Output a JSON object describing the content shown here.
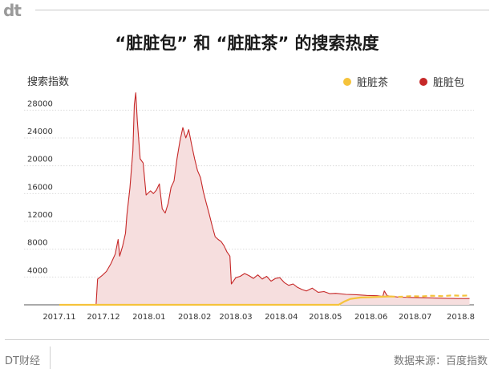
{
  "header": {
    "logo_text": "dt"
  },
  "footer": {
    "brand": "DT财经",
    "source": "数据来源：百度指数"
  },
  "chart_data": {
    "type": "area",
    "title": "“脏脏包” 和 “脏脏茶” 的搜索热度",
    "ylabel": "搜索指数",
    "xlabel": "",
    "ylim": [
      0,
      30000
    ],
    "yticks": [
      4000,
      8000,
      12000,
      16000,
      20000,
      24000,
      28000
    ],
    "x_ticks": [
      "2017.11",
      "2017.12",
      "2018.01",
      "2018.02",
      "2018.03",
      "2018.04",
      "2018.05",
      "2018.06",
      "2018.07",
      "2018.8"
    ],
    "legend": "top-right",
    "grid": true,
    "series": [
      {
        "name": "脏脏茶",
        "color": "#f5c33b",
        "dashed_after": "2018.06.14",
        "points": [
          [
            "2017.11.01",
            0
          ],
          [
            "2018.05.10",
            0
          ],
          [
            "2018.05.14",
            500
          ],
          [
            "2018.05.18",
            850
          ],
          [
            "2018.05.25",
            1050
          ],
          [
            "2018.06.01",
            1100
          ],
          [
            "2018.06.07",
            1150
          ],
          [
            "2018.06.14",
            1200
          ],
          [
            "2018.06.21",
            1150
          ],
          [
            "2018.06.28",
            1250
          ],
          [
            "2018.07.05",
            1200
          ],
          [
            "2018.07.12",
            1300
          ],
          [
            "2018.07.19",
            1250
          ],
          [
            "2018.07.26",
            1350
          ],
          [
            "2018.08.01",
            1300
          ],
          [
            "2018.08.07",
            1350
          ]
        ]
      },
      {
        "name": "脏脏包",
        "color": "#c62828",
        "fill": "#f6dede",
        "points": [
          [
            "2017.11.01",
            0
          ],
          [
            "2017.11.26",
            0
          ],
          [
            "2017.11.27",
            3700
          ],
          [
            "2017.11.30",
            4200
          ],
          [
            "2017.12.03",
            4800
          ],
          [
            "2017.12.06",
            5900
          ],
          [
            "2017.12.09",
            7300
          ],
          [
            "2017.12.11",
            9400
          ],
          [
            "2017.12.12",
            7000
          ],
          [
            "2017.12.14",
            8400
          ],
          [
            "2017.12.16",
            10300
          ],
          [
            "2017.12.17",
            13000
          ],
          [
            "2017.12.19",
            16800
          ],
          [
            "2017.12.21",
            22200
          ],
          [
            "2017.12.22",
            28800
          ],
          [
            "2017.12.23",
            30500
          ],
          [
            "2017.12.24",
            26500
          ],
          [
            "2017.12.26",
            21000
          ],
          [
            "2017.12.28",
            20400
          ],
          [
            "2017.12.30",
            15800
          ],
          [
            "2018.01.02",
            16400
          ],
          [
            "2018.01.04",
            16000
          ],
          [
            "2018.01.06",
            16500
          ],
          [
            "2018.01.08",
            17400
          ],
          [
            "2018.01.10",
            13800
          ],
          [
            "2018.01.12",
            13200
          ],
          [
            "2018.01.14",
            14600
          ],
          [
            "2018.01.16",
            16900
          ],
          [
            "2018.01.18",
            17800
          ],
          [
            "2018.01.20",
            21000
          ],
          [
            "2018.01.22",
            23500
          ],
          [
            "2018.01.24",
            25500
          ],
          [
            "2018.01.26",
            24000
          ],
          [
            "2018.01.28",
            25200
          ],
          [
            "2018.01.30",
            23000
          ],
          [
            "2018.02.01",
            21000
          ],
          [
            "2018.02.03",
            19300
          ],
          [
            "2018.02.05",
            18300
          ],
          [
            "2018.02.07",
            16200
          ],
          [
            "2018.02.09",
            14600
          ],
          [
            "2018.02.11",
            13000
          ],
          [
            "2018.02.13",
            11300
          ],
          [
            "2018.02.15",
            9800
          ],
          [
            "2018.02.17",
            9400
          ],
          [
            "2018.02.19",
            9100
          ],
          [
            "2018.02.21",
            8500
          ],
          [
            "2018.02.23",
            7600
          ],
          [
            "2018.02.25",
            7000
          ],
          [
            "2018.02.26",
            3000
          ],
          [
            "2018.03.01",
            3900
          ],
          [
            "2018.03.04",
            4100
          ],
          [
            "2018.03.07",
            4500
          ],
          [
            "2018.03.10",
            4200
          ],
          [
            "2018.03.13",
            3800
          ],
          [
            "2018.03.16",
            4300
          ],
          [
            "2018.03.19",
            3700
          ],
          [
            "2018.03.22",
            4100
          ],
          [
            "2018.03.25",
            3400
          ],
          [
            "2018.03.28",
            3800
          ],
          [
            "2018.03.31",
            3900
          ],
          [
            "2018.04.03",
            3200
          ],
          [
            "2018.04.06",
            2800
          ],
          [
            "2018.04.09",
            3000
          ],
          [
            "2018.04.12",
            2500
          ],
          [
            "2018.04.15",
            2200
          ],
          [
            "2018.04.18",
            2000
          ],
          [
            "2018.04.22",
            2400
          ],
          [
            "2018.04.26",
            1800
          ],
          [
            "2018.04.30",
            1900
          ],
          [
            "2018.05.04",
            1600
          ],
          [
            "2018.05.08",
            1650
          ],
          [
            "2018.05.15",
            1500
          ],
          [
            "2018.05.22",
            1450
          ],
          [
            "2018.05.29",
            1350
          ],
          [
            "2018.06.05",
            1300
          ],
          [
            "2018.06.09",
            1200
          ],
          [
            "2018.06.10",
            2000
          ],
          [
            "2018.06.12",
            1300
          ],
          [
            "2018.06.20",
            1100
          ],
          [
            "2018.06.30",
            1050
          ],
          [
            "2018.07.10",
            1000
          ],
          [
            "2018.07.20",
            950
          ],
          [
            "2018.07.30",
            900
          ],
          [
            "2018.08.07",
            900
          ]
        ]
      }
    ]
  }
}
